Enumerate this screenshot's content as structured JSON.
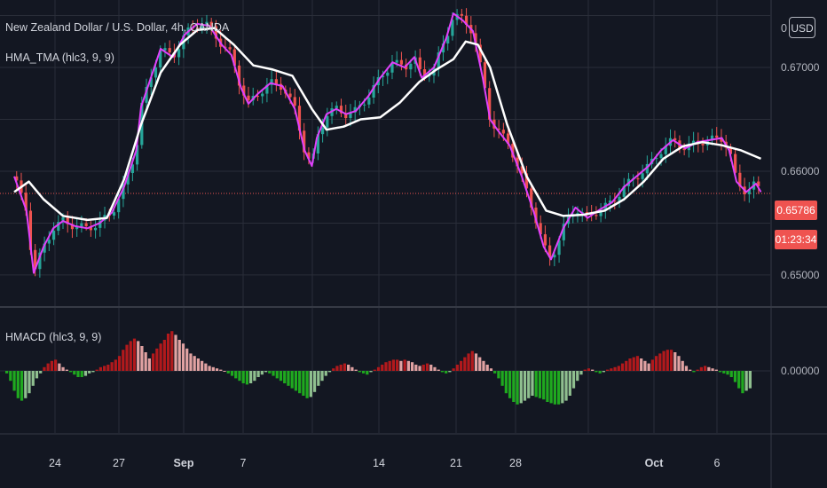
{
  "legend": {
    "symbol": "New Zealand Dollar / U.S. Dollar, 4h, OANDA",
    "indicator1": "HMA_TMA (hlc3, 9, 9)",
    "indicator2": "HMACD (hlc3, 9, 9)"
  },
  "price_axis": {
    "currency_button": "USD",
    "top_tick_partial": "0",
    "current_price": "0.65786",
    "countdown": "01:23:34"
  },
  "colors": {
    "background": "#131722",
    "grid": "#2a2e39",
    "bull": "#26a69a",
    "bear": "#ef5350",
    "hma_line": "#e040fb",
    "tma_line": "#ffffff",
    "hist_green": "#1fa91f",
    "hist_red": "#b2191c",
    "hist_pink": "#e1a2a2",
    "hist_lightgreen": "#8fbf8f"
  },
  "chart_data": [
    {
      "type": "line",
      "title": "New Zealand Dollar / U.S. Dollar, 4h, OANDA",
      "x_labels": [
        "24",
        "27",
        "Sep",
        "7",
        "14",
        "21",
        "28",
        "Oct",
        "6"
      ],
      "y_ticks": [
        "0.67000",
        "0.66000",
        "0.65000"
      ],
      "ylim": [
        0.647,
        0.6765
      ],
      "series": [
        {
          "name": "HMA_TMA (hlc3, 9, 9)",
          "color": "#e040fb",
          "points": [
            [
              0,
              0.6595
            ],
            [
              0.5,
              0.6562
            ],
            [
              0.8,
              0.6502
            ],
            [
              1.2,
              0.6527
            ],
            [
              1.6,
              0.6545
            ],
            [
              2.0,
              0.6552
            ],
            [
              2.5,
              0.6547
            ],
            [
              3.0,
              0.6545
            ],
            [
              3.5,
              0.655
            ],
            [
              4.0,
              0.656
            ],
            [
              4.5,
              0.6585
            ],
            [
              5.0,
              0.662
            ],
            [
              5.2,
              0.6662
            ],
            [
              5.6,
              0.669
            ],
            [
              6.0,
              0.6718
            ],
            [
              6.5,
              0.671
            ],
            [
              7.0,
              0.6732
            ],
            [
              7.5,
              0.6742
            ],
            [
              8.0,
              0.674
            ],
            [
              8.5,
              0.6722
            ],
            [
              8.9,
              0.6712
            ],
            [
              9.3,
              0.668
            ],
            [
              9.6,
              0.6665
            ],
            [
              10.0,
              0.6675
            ],
            [
              10.5,
              0.6685
            ],
            [
              11.0,
              0.6682
            ],
            [
              11.5,
              0.666
            ],
            [
              11.9,
              0.662
            ],
            [
              12.2,
              0.6605
            ],
            [
              12.4,
              0.6632
            ],
            [
              12.8,
              0.6655
            ],
            [
              13.2,
              0.666
            ],
            [
              13.6,
              0.6655
            ],
            [
              14.0,
              0.6658
            ],
            [
              14.5,
              0.6672
            ],
            [
              15.0,
              0.669
            ],
            [
              15.5,
              0.6705
            ],
            [
              16.0,
              0.67
            ],
            [
              16.4,
              0.671
            ],
            [
              16.7,
              0.669
            ],
            [
              17.2,
              0.67
            ],
            [
              17.7,
              0.6728
            ],
            [
              18.0,
              0.6752
            ],
            [
              18.4,
              0.6745
            ],
            [
              18.8,
              0.6735
            ],
            [
              19.2,
              0.669
            ],
            [
              19.5,
              0.665
            ],
            [
              19.8,
              0.664
            ],
            [
              20.3,
              0.6625
            ],
            [
              20.8,
              0.6595
            ],
            [
              21.3,
              0.656
            ],
            [
              21.7,
              0.6527
            ],
            [
              22.0,
              0.6515
            ],
            [
              22.5,
              0.6545
            ],
            [
              23.0,
              0.6565
            ],
            [
              23.5,
              0.6555
            ],
            [
              24.0,
              0.6563
            ],
            [
              24.5,
              0.657
            ],
            [
              25.0,
              0.6585
            ],
            [
              25.5,
              0.6595
            ],
            [
              26.0,
              0.6605
            ],
            [
              26.5,
              0.662
            ],
            [
              27.0,
              0.663
            ],
            [
              27.5,
              0.6622
            ],
            [
              28.0,
              0.6628
            ],
            [
              28.5,
              0.663
            ],
            [
              29.0,
              0.6632
            ],
            [
              29.3,
              0.662
            ],
            [
              29.6,
              0.659
            ],
            [
              30.0,
              0.658
            ],
            [
              30.4,
              0.6588
            ],
            [
              30.6,
              0.658
            ]
          ]
        },
        {
          "name": "TMA",
          "color": "#ffffff",
          "points": [
            [
              0,
              0.658
            ],
            [
              0.6,
              0.659
            ],
            [
              1.2,
              0.6573
            ],
            [
              2.0,
              0.6557
            ],
            [
              3.0,
              0.6553
            ],
            [
              3.8,
              0.6555
            ],
            [
              4.5,
              0.6592
            ],
            [
              5.2,
              0.6645
            ],
            [
              6.0,
              0.6695
            ],
            [
              6.8,
              0.6722
            ],
            [
              7.5,
              0.6736
            ],
            [
              8.2,
              0.6738
            ],
            [
              9.0,
              0.6722
            ],
            [
              9.8,
              0.6702
            ],
            [
              10.6,
              0.6698
            ],
            [
              11.4,
              0.6692
            ],
            [
              12.2,
              0.666
            ],
            [
              12.8,
              0.664
            ],
            [
              13.5,
              0.6643
            ],
            [
              14.2,
              0.665
            ],
            [
              15.0,
              0.6652
            ],
            [
              15.8,
              0.6666
            ],
            [
              16.6,
              0.6686
            ],
            [
              17.3,
              0.6698
            ],
            [
              18.0,
              0.6708
            ],
            [
              18.5,
              0.6725
            ],
            [
              19.0,
              0.6722
            ],
            [
              19.5,
              0.67
            ],
            [
              20.2,
              0.6645
            ],
            [
              21.0,
              0.6595
            ],
            [
              21.8,
              0.6562
            ],
            [
              22.5,
              0.6557
            ],
            [
              23.3,
              0.6558
            ],
            [
              24.2,
              0.6562
            ],
            [
              25.0,
              0.6573
            ],
            [
              25.8,
              0.659
            ],
            [
              26.6,
              0.6612
            ],
            [
              27.4,
              0.6624
            ],
            [
              28.2,
              0.6628
            ],
            [
              29.0,
              0.6625
            ],
            [
              29.8,
              0.662
            ],
            [
              30.6,
              0.6612
            ]
          ]
        }
      ],
      "current_price": 0.65786,
      "grid": true
    },
    {
      "type": "bar",
      "title": "HMACD (hlc3, 9, 9)",
      "y_ticks": [
        "0.00000"
      ],
      "ylim": [
        -0.005,
        0.005
      ],
      "series": [
        {
          "name": "HMACD (hlc3, 9, 9)",
          "values": [
            -0.0002,
            -0.0008,
            -0.0016,
            -0.0022,
            -0.0024,
            -0.0022,
            -0.0018,
            -0.0012,
            -0.0006,
            -0.0002,
            0.0003,
            0.0006,
            0.0008,
            0.0009,
            0.0006,
            0.0003,
            0.0001,
            -0.0001,
            -0.0003,
            -0.0005,
            -0.0005,
            -0.0004,
            -0.0002,
            -0.0001,
            0.0001,
            0.0003,
            0.0004,
            0.0005,
            0.0007,
            0.0009,
            0.0012,
            0.0017,
            0.0021,
            0.0024,
            0.0026,
            0.0024,
            0.002,
            0.0015,
            0.001,
            0.0014,
            0.0018,
            0.0022,
            0.0025,
            0.003,
            0.0032,
            0.0029,
            0.0025,
            0.0022,
            0.0018,
            0.0014,
            0.0012,
            0.001,
            0.0008,
            0.0006,
            0.0004,
            0.0003,
            0.0002,
            0.0001,
            0.0,
            -0.0002,
            -0.0004,
            -0.0006,
            -0.0008,
            -0.001,
            -0.0011,
            -0.001,
            -0.0008,
            -0.0005,
            -0.0003,
            -0.0001,
            -0.0002,
            -0.0004,
            -0.0006,
            -0.0008,
            -0.001,
            -0.0012,
            -0.0014,
            -0.0016,
            -0.0018,
            -0.002,
            -0.0022,
            -0.0021,
            -0.0017,
            -0.0012,
            -0.0008,
            -0.0004,
            -0.0001,
            0.0002,
            0.0004,
            0.0005,
            0.0006,
            0.0005,
            0.0003,
            0.0001,
            -0.0001,
            -0.0002,
            -0.0003,
            -0.0001,
            0.0001,
            0.0003,
            0.0005,
            0.0007,
            0.0008,
            0.0009,
            0.0009,
            0.0008,
            0.0009,
            0.0008,
            0.0007,
            0.0005,
            0.0004,
            0.0005,
            0.0006,
            0.0005,
            0.0003,
            0.0001,
            -0.0001,
            -0.0002,
            -0.0001,
            0.0002,
            0.0005,
            0.0008,
            0.0011,
            0.0014,
            0.0016,
            0.0014,
            0.0011,
            0.0008,
            0.0005,
            0.0002,
            -0.0002,
            -0.0006,
            -0.0012,
            -0.0018,
            -0.0022,
            -0.0025,
            -0.0027,
            -0.0026,
            -0.0024,
            -0.0022,
            -0.002,
            -0.0021,
            -0.0022,
            -0.0023,
            -0.0025,
            -0.0026,
            -0.0027,
            -0.0027,
            -0.0026,
            -0.0024,
            -0.002,
            -0.0014,
            -0.0008,
            -0.0003,
            0.0001,
            0.0002,
            0.0001,
            -0.0001,
            -0.0002,
            -0.0001,
            0.0001,
            0.0002,
            0.0003,
            0.0004,
            0.0006,
            0.0008,
            0.001,
            0.0011,
            0.0012,
            0.001,
            0.0008,
            0.0006,
            0.0009,
            0.0012,
            0.0014,
            0.0016,
            0.0017,
            0.0017,
            0.0015,
            0.0012,
            0.0008,
            0.0004,
            0.0001,
            -0.0001,
            0.0001,
            0.0003,
            0.0004,
            0.0003,
            0.0002,
            0.0001,
            -0.0001,
            -0.0002,
            -0.0003,
            -0.0005,
            -0.0009,
            -0.0014,
            -0.0018,
            -0.0016,
            -0.0014
          ]
        }
      ],
      "grid": true
    }
  ]
}
